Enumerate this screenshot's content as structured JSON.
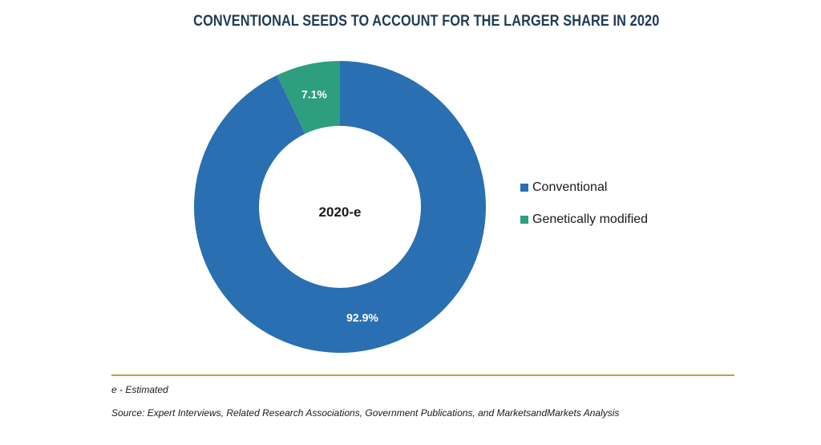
{
  "title": "CONVENTIONAL SEEDS TO ACCOUNT FOR THE LARGER SHARE IN 2020",
  "footnote": "e - Estimated",
  "source": "Source: Expert Interviews, Related Research Associations, Government Publications, and MarketsandMarkets Analysis",
  "colors": {
    "conventional": "#2a6fb1",
    "genetically_modified": "#2e9e80",
    "divider": "#b5a642",
    "title": "#1f3b57"
  },
  "chart_data": {
    "type": "pie",
    "center_label": "2020-e",
    "slices": [
      {
        "name": "Conventional",
        "value": 92.9,
        "label": "92.9%",
        "color": "#2a6fb1"
      },
      {
        "name": "Genetically modified",
        "value": 7.1,
        "label": "7.1%",
        "color": "#2e9e80"
      }
    ],
    "legend": [
      "Conventional",
      "Genetically modified"
    ],
    "legend_position": "right"
  }
}
